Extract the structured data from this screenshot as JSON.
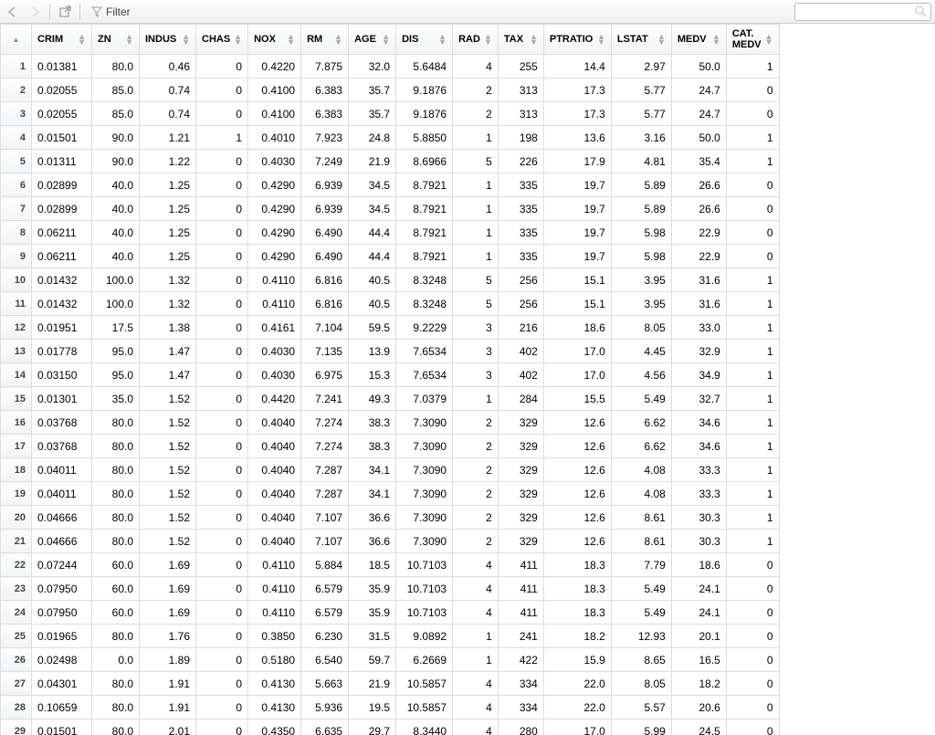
{
  "toolbar": {
    "filter_label": "Filter"
  },
  "table": {
    "columns": [
      {
        "key": "CRIM",
        "label": "CRIM"
      },
      {
        "key": "ZN",
        "label": "ZN"
      },
      {
        "key": "INDUS",
        "label": "INDUS"
      },
      {
        "key": "CHAS",
        "label": "CHAS"
      },
      {
        "key": "NOX",
        "label": "NOX"
      },
      {
        "key": "RM",
        "label": "RM"
      },
      {
        "key": "AGE",
        "label": "AGE"
      },
      {
        "key": "DIS",
        "label": "DIS"
      },
      {
        "key": "RAD",
        "label": "RAD"
      },
      {
        "key": "TAX",
        "label": "TAX"
      },
      {
        "key": "PTRATIO",
        "label": "PTRATIO"
      },
      {
        "key": "LSTAT",
        "label": "LSTAT"
      },
      {
        "key": "MEDV",
        "label": "MEDV"
      },
      {
        "key": "CAT_MEDV",
        "label": "CAT.\nMEDV"
      }
    ],
    "rows": [
      [
        "0.01381",
        "80.0",
        "0.46",
        "0",
        "0.4220",
        "7.875",
        "32.0",
        "5.6484",
        "4",
        "255",
        "14.4",
        "2.97",
        "50.0",
        "1"
      ],
      [
        "0.02055",
        "85.0",
        "0.74",
        "0",
        "0.4100",
        "6.383",
        "35.7",
        "9.1876",
        "2",
        "313",
        "17.3",
        "5.77",
        "24.7",
        "0"
      ],
      [
        "0.02055",
        "85.0",
        "0.74",
        "0",
        "0.4100",
        "6.383",
        "35.7",
        "9.1876",
        "2",
        "313",
        "17.3",
        "5.77",
        "24.7",
        "0"
      ],
      [
        "0.01501",
        "90.0",
        "1.21",
        "1",
        "0.4010",
        "7.923",
        "24.8",
        "5.8850",
        "1",
        "198",
        "13.6",
        "3.16",
        "50.0",
        "1"
      ],
      [
        "0.01311",
        "90.0",
        "1.22",
        "0",
        "0.4030",
        "7.249",
        "21.9",
        "8.6966",
        "5",
        "226",
        "17.9",
        "4.81",
        "35.4",
        "1"
      ],
      [
        "0.02899",
        "40.0",
        "1.25",
        "0",
        "0.4290",
        "6.939",
        "34.5",
        "8.7921",
        "1",
        "335",
        "19.7",
        "5.89",
        "26.6",
        "0"
      ],
      [
        "0.02899",
        "40.0",
        "1.25",
        "0",
        "0.4290",
        "6.939",
        "34.5",
        "8.7921",
        "1",
        "335",
        "19.7",
        "5.89",
        "26.6",
        "0"
      ],
      [
        "0.06211",
        "40.0",
        "1.25",
        "0",
        "0.4290",
        "6.490",
        "44.4",
        "8.7921",
        "1",
        "335",
        "19.7",
        "5.98",
        "22.9",
        "0"
      ],
      [
        "0.06211",
        "40.0",
        "1.25",
        "0",
        "0.4290",
        "6.490",
        "44.4",
        "8.7921",
        "1",
        "335",
        "19.7",
        "5.98",
        "22.9",
        "0"
      ],
      [
        "0.01432",
        "100.0",
        "1.32",
        "0",
        "0.4110",
        "6.816",
        "40.5",
        "8.3248",
        "5",
        "256",
        "15.1",
        "3.95",
        "31.6",
        "1"
      ],
      [
        "0.01432",
        "100.0",
        "1.32",
        "0",
        "0.4110",
        "6.816",
        "40.5",
        "8.3248",
        "5",
        "256",
        "15.1",
        "3.95",
        "31.6",
        "1"
      ],
      [
        "0.01951",
        "17.5",
        "1.38",
        "0",
        "0.4161",
        "7.104",
        "59.5",
        "9.2229",
        "3",
        "216",
        "18.6",
        "8.05",
        "33.0",
        "1"
      ],
      [
        "0.01778",
        "95.0",
        "1.47",
        "0",
        "0.4030",
        "7.135",
        "13.9",
        "7.6534",
        "3",
        "402",
        "17.0",
        "4.45",
        "32.9",
        "1"
      ],
      [
        "0.03150",
        "95.0",
        "1.47",
        "0",
        "0.4030",
        "6.975",
        "15.3",
        "7.6534",
        "3",
        "402",
        "17.0",
        "4.56",
        "34.9",
        "1"
      ],
      [
        "0.01301",
        "35.0",
        "1.52",
        "0",
        "0.4420",
        "7.241",
        "49.3",
        "7.0379",
        "1",
        "284",
        "15.5",
        "5.49",
        "32.7",
        "1"
      ],
      [
        "0.03768",
        "80.0",
        "1.52",
        "0",
        "0.4040",
        "7.274",
        "38.3",
        "7.3090",
        "2",
        "329",
        "12.6",
        "6.62",
        "34.6",
        "1"
      ],
      [
        "0.03768",
        "80.0",
        "1.52",
        "0",
        "0.4040",
        "7.274",
        "38.3",
        "7.3090",
        "2",
        "329",
        "12.6",
        "6.62",
        "34.6",
        "1"
      ],
      [
        "0.04011",
        "80.0",
        "1.52",
        "0",
        "0.4040",
        "7.287",
        "34.1",
        "7.3090",
        "2",
        "329",
        "12.6",
        "4.08",
        "33.3",
        "1"
      ],
      [
        "0.04011",
        "80.0",
        "1.52",
        "0",
        "0.4040",
        "7.287",
        "34.1",
        "7.3090",
        "2",
        "329",
        "12.6",
        "4.08",
        "33.3",
        "1"
      ],
      [
        "0.04666",
        "80.0",
        "1.52",
        "0",
        "0.4040",
        "7.107",
        "36.6",
        "7.3090",
        "2",
        "329",
        "12.6",
        "8.61",
        "30.3",
        "1"
      ],
      [
        "0.04666",
        "80.0",
        "1.52",
        "0",
        "0.4040",
        "7.107",
        "36.6",
        "7.3090",
        "2",
        "329",
        "12.6",
        "8.61",
        "30.3",
        "1"
      ],
      [
        "0.07244",
        "60.0",
        "1.69",
        "0",
        "0.4110",
        "5.884",
        "18.5",
        "10.7103",
        "4",
        "411",
        "18.3",
        "7.79",
        "18.6",
        "0"
      ],
      [
        "0.07950",
        "60.0",
        "1.69",
        "0",
        "0.4110",
        "6.579",
        "35.9",
        "10.7103",
        "4",
        "411",
        "18.3",
        "5.49",
        "24.1",
        "0"
      ],
      [
        "0.07950",
        "60.0",
        "1.69",
        "0",
        "0.4110",
        "6.579",
        "35.9",
        "10.7103",
        "4",
        "411",
        "18.3",
        "5.49",
        "24.1",
        "0"
      ],
      [
        "0.01965",
        "80.0",
        "1.76",
        "0",
        "0.3850",
        "6.230",
        "31.5",
        "9.0892",
        "1",
        "241",
        "18.2",
        "12.93",
        "20.1",
        "0"
      ],
      [
        "0.02498",
        "0.0",
        "1.89",
        "0",
        "0.5180",
        "6.540",
        "59.7",
        "6.2669",
        "1",
        "422",
        "15.9",
        "8.65",
        "16.5",
        "0"
      ],
      [
        "0.04301",
        "80.0",
        "1.91",
        "0",
        "0.4130",
        "5.663",
        "21.9",
        "10.5857",
        "4",
        "334",
        "22.0",
        "8.05",
        "18.2",
        "0"
      ],
      [
        "0.10659",
        "80.0",
        "1.91",
        "0",
        "0.4130",
        "5.936",
        "19.5",
        "10.5857",
        "4",
        "334",
        "22.0",
        "5.57",
        "20.6",
        "0"
      ],
      [
        "0.01501",
        "80.0",
        "2.01",
        "0",
        "0.4350",
        "6.635",
        "29.7",
        "8.3440",
        "4",
        "280",
        "17.0",
        "5.99",
        "24.5",
        "0"
      ]
    ],
    "col_classes": [
      "c-crim",
      "c-zn",
      "c-indus",
      "c-chas",
      "c-nox",
      "c-rm",
      "c-age",
      "c-dis",
      "c-rad",
      "c-tax",
      "c-ptr",
      "c-lstat",
      "c-medv",
      "c-cat"
    ]
  },
  "colors": {
    "header_bg_top": "#fdfdfd",
    "header_bg_bot": "#f2f4f6",
    "border": "#dddddd",
    "toolbar_border": "#cccccc",
    "text": "#000000",
    "muted": "#999999"
  }
}
